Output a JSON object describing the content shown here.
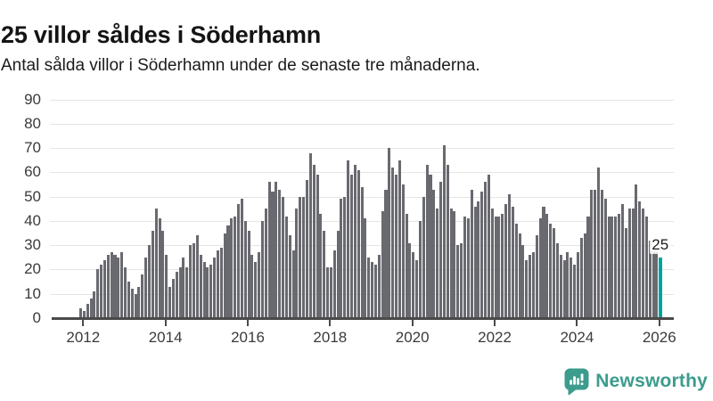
{
  "header": {
    "title": "25 villor såldes i Söderhamn",
    "subtitle": "Antal sålda villor i Söderhamn under de senaste tre månaderna."
  },
  "chart_data": {
    "type": "bar",
    "title": "25 villor såldes i Söderhamn",
    "subtitle": "Antal sålda villor i Söderhamn under de senaste tre månaderna.",
    "xlabel": "",
    "ylabel": "",
    "ylim": [
      0,
      90
    ],
    "y_ticks": [
      0,
      10,
      20,
      30,
      40,
      50,
      60,
      70,
      80,
      90
    ],
    "x_tick_labels": [
      "2012",
      "2014",
      "2016",
      "2018",
      "2020",
      "2022",
      "2024",
      "2026"
    ],
    "grid": true,
    "start_year": 2012,
    "months_per_point": 1,
    "highlight": {
      "label": "25",
      "value": 25,
      "position": "last"
    },
    "colors": {
      "bar": "#696970",
      "highlight": "#00a39b",
      "grid": "#e5e5e5",
      "axis": "#4a4a4a"
    },
    "values": [
      4,
      3,
      6,
      8,
      11,
      20,
      22,
      24,
      26,
      27,
      26,
      25,
      27,
      21,
      15,
      12,
      10,
      13,
      18,
      25,
      30,
      36,
      45,
      41,
      36,
      26,
      13,
      16,
      19,
      21,
      25,
      21,
      30,
      31,
      34,
      26,
      23,
      21,
      22,
      25,
      28,
      29,
      35,
      38,
      41,
      42,
      47,
      49,
      40,
      36,
      26,
      23,
      27,
      40,
      45,
      56,
      52,
      56,
      53,
      50,
      42,
      34,
      28,
      45,
      50,
      50,
      57,
      68,
      63,
      59,
      43,
      36,
      21,
      21,
      28,
      36,
      49,
      50,
      65,
      59,
      63,
      61,
      54,
      41,
      25,
      23,
      22,
      26,
      44,
      53,
      70,
      62,
      59,
      65,
      55,
      43,
      31,
      27,
      24,
      40,
      50,
      63,
      59,
      53,
      45,
      56,
      71,
      63,
      45,
      44,
      30,
      31,
      42,
      41,
      53,
      46,
      48,
      52,
      56,
      59,
      45,
      42,
      42,
      43,
      47,
      51,
      46,
      39,
      35,
      30,
      24,
      26,
      27,
      34,
      41,
      46,
      43,
      39,
      37,
      31,
      26,
      24,
      27,
      25,
      22,
      27,
      33,
      35,
      42,
      53,
      53,
      62,
      53,
      49,
      42,
      42,
      42,
      43,
      47,
      37,
      45,
      45,
      55,
      48,
      45,
      42,
      32,
      28,
      27,
      25
    ]
  },
  "footer": {
    "brand": "Newsworthy"
  }
}
